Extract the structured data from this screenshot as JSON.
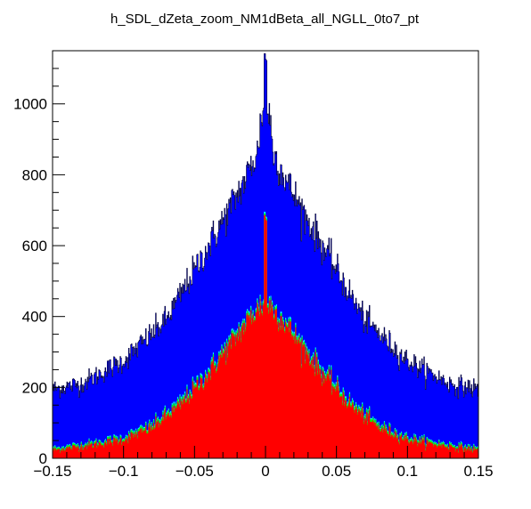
{
  "chart_data": {
    "type": "histogram",
    "title": "h_SDL_dZeta_zoom_NM1dBeta_all_NGLL_0to7_pt",
    "xlabel": "",
    "ylabel": "",
    "xlim": [
      -0.15,
      0.15
    ],
    "ylim": [
      0,
      1150
    ],
    "x_ticks": [
      {
        "value": -0.15,
        "label": "−0.15"
      },
      {
        "value": -0.1,
        "label": "−0.1"
      },
      {
        "value": -0.05,
        "label": "−0.05"
      },
      {
        "value": 0,
        "label": "0"
      },
      {
        "value": 0.05,
        "label": "0.05"
      },
      {
        "value": 0.1,
        "label": "0.1"
      },
      {
        "value": 0.15,
        "label": "0.15"
      }
    ],
    "y_ticks": [
      {
        "value": 0,
        "label": "0"
      },
      {
        "value": 200,
        "label": "200"
      },
      {
        "value": 400,
        "label": "400"
      },
      {
        "value": 600,
        "label": "600"
      },
      {
        "value": 800,
        "label": "800"
      },
      {
        "value": 1000,
        "label": "1000"
      }
    ],
    "y_minor_step": 50,
    "x_minor_step": 0.01,
    "bins": 600,
    "grid": false,
    "legend": "none",
    "series": [
      {
        "color": "#0000ff",
        "shape_x": [
          -0.15,
          -0.13,
          -0.1,
          -0.07,
          -0.05,
          -0.03,
          -0.015,
          -0.005,
          0,
          0.005,
          0.015,
          0.03,
          0.05,
          0.07,
          0.1,
          0.13,
          0.15
        ],
        "shape_y": [
          195,
          210,
          275,
          390,
          530,
          670,
          780,
          870,
          1135,
          870,
          780,
          670,
          530,
          390,
          275,
          210,
          195
        ]
      },
      {
        "color": "#00ffff",
        "shape_x": [
          -0.15,
          -0.12,
          -0.1,
          -0.08,
          -0.06,
          -0.04,
          -0.025,
          -0.01,
          -0.003,
          0,
          0.003,
          0.01,
          0.025,
          0.04,
          0.06,
          0.08,
          0.1,
          0.12,
          0.15
        ],
        "shape_y": [
          28,
          45,
          60,
          95,
          160,
          250,
          330,
          410,
          440,
          690,
          440,
          410,
          330,
          250,
          160,
          95,
          60,
          45,
          28
        ]
      },
      {
        "color": "#00ff00",
        "shape_x": [
          -0.15,
          -0.12,
          -0.1,
          -0.08,
          -0.06,
          -0.04,
          -0.025,
          -0.01,
          -0.003,
          0,
          0.003,
          0.01,
          0.025,
          0.04,
          0.06,
          0.08,
          0.1,
          0.12,
          0.15
        ],
        "shape_y": [
          26,
          43,
          57,
          92,
          155,
          245,
          325,
          405,
          435,
          685,
          435,
          405,
          325,
          245,
          155,
          92,
          57,
          43,
          26
        ]
      },
      {
        "color": "#ff0000",
        "shape_x": [
          -0.15,
          -0.12,
          -0.1,
          -0.08,
          -0.06,
          -0.04,
          -0.025,
          -0.01,
          -0.003,
          0,
          0.003,
          0.01,
          0.025,
          0.04,
          0.06,
          0.08,
          0.1,
          0.12,
          0.15
        ],
        "shape_y": [
          22,
          38,
          52,
          85,
          148,
          238,
          318,
          398,
          428,
          680,
          428,
          398,
          318,
          238,
          148,
          85,
          52,
          38,
          22
        ]
      }
    ]
  }
}
